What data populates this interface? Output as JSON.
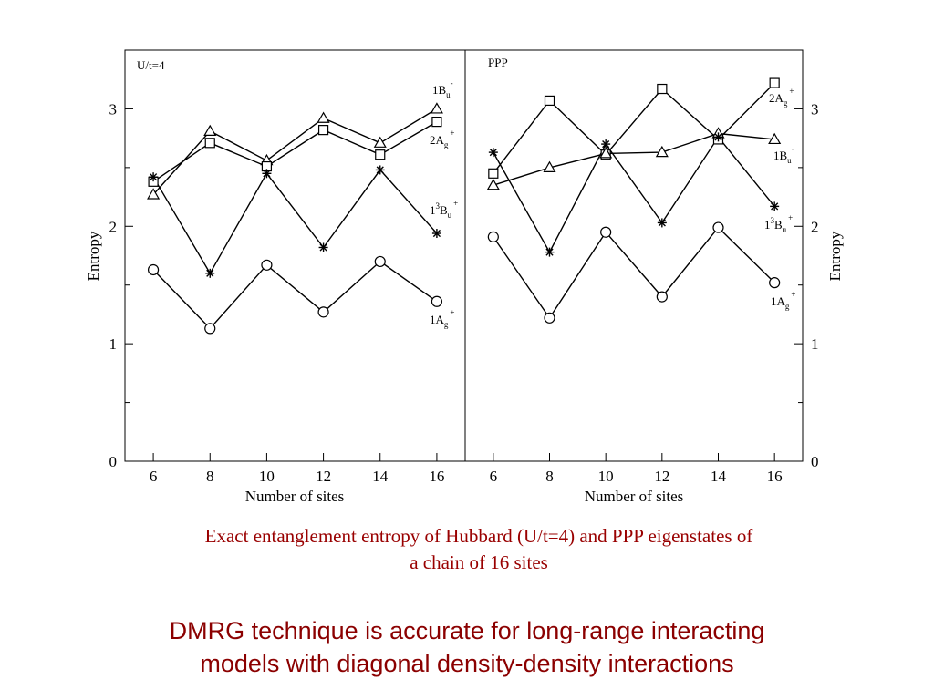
{
  "chart_data": [
    {
      "type": "line",
      "panel": "left",
      "title": "U/t=4",
      "xlabel": "Number of sites",
      "ylabel": "Entropy",
      "x": [
        6,
        8,
        10,
        12,
        14,
        16
      ],
      "xlim": [
        5,
        17
      ],
      "ylim": [
        0,
        3.5
      ],
      "yticks": [
        "0",
        "1",
        "2",
        "3"
      ],
      "grid": false,
      "series": [
        {
          "name": "1B_u^-",
          "marker": "triangle",
          "values": [
            2.27,
            2.81,
            2.56,
            2.92,
            2.71,
            3.0
          ]
        },
        {
          "name": "2A_g^+",
          "marker": "square",
          "values": [
            2.38,
            2.71,
            2.51,
            2.82,
            2.61,
            2.89
          ]
        },
        {
          "name": "1^3B_u^+",
          "marker": "star",
          "values": [
            2.42,
            1.6,
            2.45,
            1.82,
            2.48,
            1.94
          ]
        },
        {
          "name": "1A_g^+",
          "marker": "circle",
          "values": [
            1.63,
            1.13,
            1.67,
            1.27,
            1.7,
            1.36
          ]
        }
      ]
    },
    {
      "type": "line",
      "panel": "right",
      "title": "PPP",
      "xlabel": "Number of sites",
      "ylabel": "Entropy",
      "x": [
        6,
        8,
        10,
        12,
        14,
        16
      ],
      "xlim": [
        5,
        17
      ],
      "ylim": [
        0,
        3.5
      ],
      "yticks": [
        "0",
        "1",
        "2",
        "3"
      ],
      "y_axis_side": "right",
      "grid": false,
      "series": [
        {
          "name": "2A_g^+",
          "marker": "square",
          "values": [
            2.45,
            3.07,
            2.61,
            3.17,
            2.74,
            3.22
          ]
        },
        {
          "name": "1B_u^-",
          "marker": "triangle",
          "values": [
            2.35,
            2.5,
            2.62,
            2.63,
            2.79,
            2.74
          ]
        },
        {
          "name": "1^3B_u^+",
          "marker": "star",
          "values": [
            2.63,
            1.78,
            2.7,
            2.03,
            2.76,
            2.17
          ]
        },
        {
          "name": "1A_g^+",
          "marker": "circle",
          "values": [
            1.91,
            1.22,
            1.95,
            1.4,
            1.99,
            1.52
          ]
        }
      ]
    }
  ],
  "text": {
    "caption_line1": "Exact entanglement entropy of Hubbard (U/t=4) and PPP eigenstates of",
    "caption_line2": "a chain of 16 sites",
    "takeaway_line1": "DMRG technique is accurate for long-range interacting",
    "takeaway_line2": "models with diagonal density-density interactions"
  }
}
